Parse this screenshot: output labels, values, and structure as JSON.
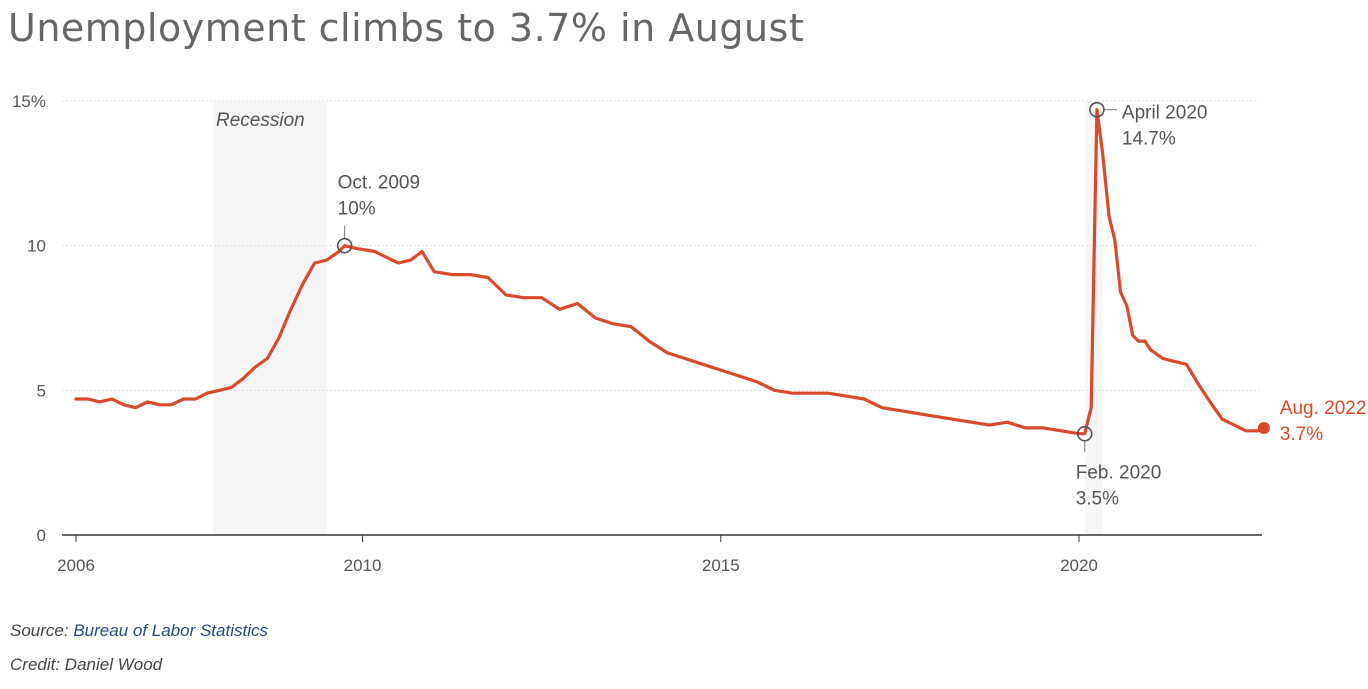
{
  "chart_title": "Unemployment climbs to 3.7% in August",
  "footer": {
    "source_prefix": "Source:",
    "source_link": "Bureau of Labor Statistics",
    "credit": "Credit: Daniel Wood"
  },
  "colors": {
    "line": "#d94a2b",
    "grid": "#dddddd",
    "axis": "#333333",
    "text": "#555555",
    "source_link": "#2a4a7f"
  },
  "chart_data": {
    "type": "line",
    "title": "Unemployment climbs to 3.7% in August",
    "xlabel": "",
    "ylabel": "",
    "xlim": [
      2006,
      2022.75
    ],
    "ylim": [
      0,
      15
    ],
    "yticks": [
      0,
      5,
      10,
      15
    ],
    "ytick_labels": [
      "0",
      "5",
      "10",
      "15%"
    ],
    "xticks": [
      2006,
      2010,
      2015,
      2020
    ],
    "xtick_labels": [
      "2006",
      "2010",
      "2015",
      "2020"
    ],
    "grid": "horizontal dotted",
    "shaded_regions": [
      {
        "label": "Recession",
        "start": 2007.92,
        "end": 2009.5
      },
      {
        "label": "",
        "start": 2020.08,
        "end": 2020.33
      }
    ],
    "series": [
      {
        "name": "",
        "x": [
          2006.0,
          2006.17,
          2006.33,
          2006.5,
          2006.67,
          2006.83,
          2007.0,
          2007.17,
          2007.33,
          2007.5,
          2007.67,
          2007.83,
          2008.0,
          2008.17,
          2008.33,
          2008.5,
          2008.67,
          2008.83,
          2009.0,
          2009.17,
          2009.33,
          2009.5,
          2009.67,
          2009.75,
          2009.92,
          2010.17,
          2010.33,
          2010.5,
          2010.67,
          2010.83,
          2011.0,
          2011.25,
          2011.5,
          2011.75,
          2012.0,
          2012.25,
          2012.5,
          2012.75,
          2013.0,
          2013.25,
          2013.5,
          2013.75,
          2014.0,
          2014.25,
          2014.5,
          2014.75,
          2015.0,
          2015.25,
          2015.5,
          2015.75,
          2016.0,
          2016.25,
          2016.5,
          2016.75,
          2017.0,
          2017.25,
          2017.5,
          2017.75,
          2018.0,
          2018.25,
          2018.5,
          2018.75,
          2019.0,
          2019.25,
          2019.5,
          2019.75,
          2020.0,
          2020.08,
          2020.17,
          2020.25,
          2020.33,
          2020.42,
          2020.5,
          2020.58,
          2020.67,
          2020.75,
          2020.83,
          2020.92,
          2021.0,
          2021.17,
          2021.33,
          2021.5,
          2021.67,
          2021.83,
          2022.0,
          2022.17,
          2022.33,
          2022.5,
          2022.58
        ],
        "values": [
          4.7,
          4.7,
          4.6,
          4.7,
          4.5,
          4.4,
          4.6,
          4.5,
          4.5,
          4.7,
          4.7,
          4.9,
          5.0,
          5.1,
          5.4,
          5.8,
          6.1,
          6.8,
          7.8,
          8.7,
          9.4,
          9.5,
          9.8,
          10.0,
          9.9,
          9.8,
          9.6,
          9.4,
          9.5,
          9.8,
          9.1,
          9.0,
          9.0,
          8.9,
          8.3,
          8.2,
          8.2,
          7.8,
          8.0,
          7.5,
          7.3,
          7.2,
          6.7,
          6.3,
          6.1,
          5.9,
          5.7,
          5.5,
          5.3,
          5.0,
          4.9,
          4.9,
          4.9,
          4.8,
          4.7,
          4.4,
          4.3,
          4.2,
          4.1,
          4.0,
          3.9,
          3.8,
          3.9,
          3.7,
          3.7,
          3.6,
          3.5,
          3.5,
          4.4,
          14.7,
          13.2,
          11.0,
          10.2,
          8.4,
          7.9,
          6.9,
          6.7,
          6.7,
          6.4,
          6.1,
          6.0,
          5.9,
          5.2,
          4.6,
          4.0,
          3.8,
          3.6,
          3.6,
          3.7
        ]
      }
    ],
    "annotations": [
      {
        "label": "Oct. 2009",
        "value_label": "10%",
        "x": 2009.75,
        "y": 10.0
      },
      {
        "label": "Feb. 2020",
        "value_label": "3.5%",
        "x": 2020.08,
        "y": 3.5
      },
      {
        "label": "April 2020",
        "value_label": "14.7%",
        "x": 2020.25,
        "y": 14.7
      },
      {
        "label": "Aug. 2022",
        "value_label": "3.7%",
        "x": 2022.58,
        "y": 3.7
      }
    ]
  }
}
